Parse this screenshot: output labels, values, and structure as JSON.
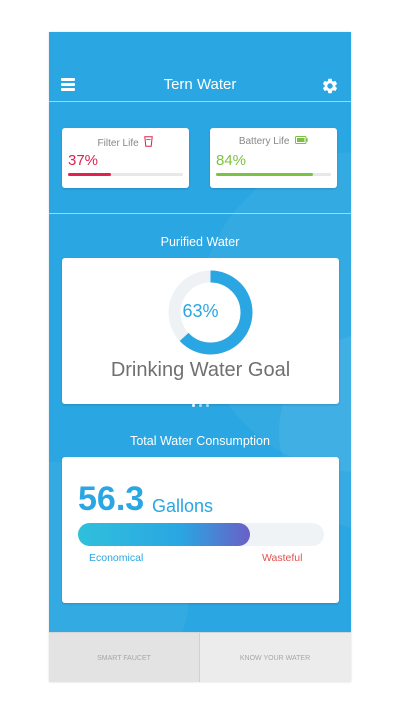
{
  "header": {
    "title": "Tern Water",
    "menu_icon": "hamburger-menu-icon",
    "settings_icon": "gear-icon"
  },
  "filter": {
    "label": "Filter Life",
    "value": "37%",
    "fraction": 0.37,
    "color": "#e0224f",
    "icon": "cup-icon"
  },
  "battery": {
    "label": "Battery Life",
    "value": "84%",
    "fraction": 0.84,
    "color": "#7cc242",
    "icon": "battery-icon"
  },
  "purified": {
    "section_title": "Purified Water",
    "percent": "63%",
    "fraction": 0.63,
    "goal_label": "Drinking Water Goal",
    "pages": 3,
    "active_page": 0
  },
  "consumption": {
    "section_title": "Total Water Consumption",
    "amount": "56.3",
    "unit": "Gallons",
    "fraction": 0.7,
    "scale_left": "Economical",
    "scale_right": "Wasteful"
  },
  "nav": {
    "tab1": "SMART FAUCET",
    "tab2": "KNOW YOUR WATER",
    "active": "tab1"
  },
  "colors": {
    "background": "#2aa6e2",
    "accent": "#2aa6e2",
    "danger": "#e3514d",
    "gauge_track": "#eef2f5"
  }
}
